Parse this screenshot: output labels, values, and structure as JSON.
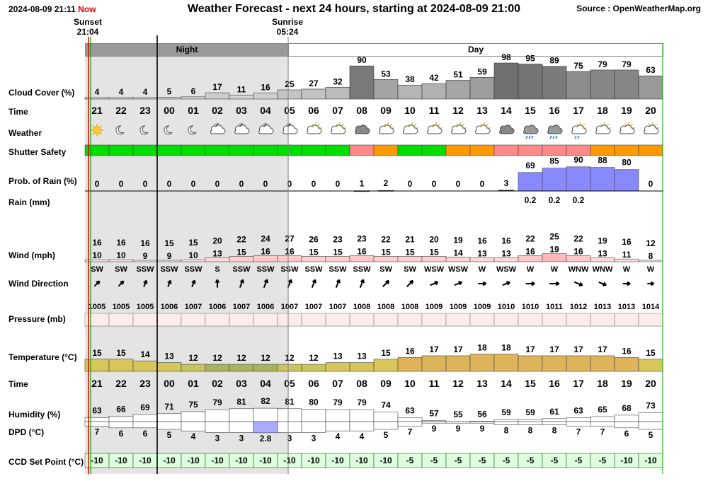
{
  "header": {
    "time": "2024-08-09 21:11",
    "now_label": "Now",
    "title": "Weather Forecast - next 24 hours, starting at 2024-08-09 21:00",
    "source": "Source : OpenWeatherMap.org"
  },
  "sun": {
    "sunset_label": "Sunset",
    "sunset_time": "21:04",
    "sunrise_label": "Sunrise",
    "sunrise_time": "05:24"
  },
  "bands": {
    "night": "Night",
    "day": "Day"
  },
  "row_labels": {
    "cloud": "Cloud Cover (%)",
    "time": "Time",
    "weather": "Weather",
    "shutter": "Shutter Safety",
    "pop": "Prob. of Rain (%)",
    "rain": "Rain (mm)",
    "wind": "Wind (mph)",
    "wind_dir": "Wind Direction",
    "pressure": "Pressure (mb)",
    "temperature": "Temperature (°C)",
    "time2": "Time",
    "humidity": "Humidity (%)",
    "dpd": "DPD (°C)",
    "ccd": "CCD Set Point (°C)"
  },
  "colors": {
    "safe": "#00dd00",
    "caution": "#ff9900",
    "unsafe": "#ff8888",
    "rain_fill": "#8888ff",
    "night_band": "#e4e4e4",
    "sunset_line": "#dd0000",
    "now_line": "#00aa00"
  },
  "chart_data": {
    "type": "table",
    "hours": [
      "21",
      "22",
      "23",
      "00",
      "01",
      "02",
      "03",
      "04",
      "05",
      "06",
      "07",
      "08",
      "09",
      "10",
      "11",
      "12",
      "13",
      "14",
      "15",
      "16",
      "17",
      "18",
      "19",
      "20"
    ],
    "cloud_cover": [
      4,
      4,
      4,
      5,
      6,
      17,
      11,
      16,
      25,
      27,
      32,
      90,
      53,
      38,
      42,
      51,
      59,
      98,
      95,
      89,
      75,
      79,
      79,
      63
    ],
    "weather_icons": [
      "sun-icon",
      "moon-icon",
      "moon-icon",
      "moon-icon",
      "moon-icon",
      "moon-cloud-icon",
      "moon-cloud-icon",
      "moon-cloud-icon",
      "moon-cloud-icon",
      "sun-cloud-icon",
      "sun-cloud-icon",
      "cloud-icon",
      "sun-cloud-icon",
      "sun-cloud-icon",
      "sun-cloud-icon",
      "sun-cloud-icon",
      "sun-cloud-icon",
      "cloud-icon",
      "rain-cloud-icon",
      "rain-cloud-icon",
      "rain-sun-cloud-icon",
      "sun-cloud-icon",
      "sun-cloud-icon",
      "sun-cloud-icon"
    ],
    "shutter_safety": [
      "safe",
      "safe",
      "safe",
      "safe",
      "safe",
      "safe",
      "safe",
      "safe",
      "safe",
      "safe",
      "safe",
      "unsafe",
      "caution",
      "safe",
      "safe",
      "caution",
      "caution",
      "unsafe",
      "unsafe",
      "unsafe",
      "unsafe",
      "caution",
      "caution",
      "caution"
    ],
    "prob_rain": [
      0,
      0,
      0,
      0,
      0,
      0,
      0,
      0,
      0,
      0,
      0,
      1,
      2,
      0,
      0,
      0,
      0,
      3,
      69,
      85,
      90,
      88,
      80,
      0
    ],
    "rain_mm": [
      null,
      null,
      null,
      null,
      null,
      null,
      null,
      null,
      null,
      null,
      null,
      null,
      null,
      null,
      null,
      null,
      null,
      null,
      0.2,
      0.2,
      0.2,
      null,
      null,
      null
    ],
    "rain_mm_labels": [
      "",
      "",
      "",
      "",
      "",
      "",
      "",
      "",
      "",
      "",
      "",
      "",
      "",
      "",
      "",
      "",
      "",
      "",
      "0.2",
      "0.2",
      "0.2",
      "",
      "",
      ""
    ],
    "wind_gust": [
      16,
      16,
      16,
      15,
      15,
      20,
      22,
      24,
      27,
      26,
      23,
      23,
      22,
      21,
      20,
      19,
      16,
      16,
      22,
      25,
      22,
      19,
      16,
      12
    ],
    "wind_speed": [
      10,
      10,
      9,
      9,
      10,
      13,
      15,
      16,
      16,
      15,
      15,
      16,
      15,
      15,
      15,
      14,
      13,
      13,
      16,
      19,
      16,
      13,
      11,
      8
    ],
    "wind_direction": [
      "SW",
      "SW",
      "SSW",
      "SSW",
      "SSW",
      "S",
      "SSW",
      "SSW",
      "SSW",
      "SSW",
      "SSW",
      "SSW",
      "SW",
      "SW",
      "WSW",
      "WSW",
      "W",
      "WSW",
      "W",
      "W",
      "WNW",
      "WNW",
      "W",
      "W"
    ],
    "wind_degrees": [
      225,
      225,
      202,
      202,
      202,
      180,
      202,
      202,
      202,
      202,
      202,
      202,
      225,
      225,
      247,
      247,
      270,
      247,
      270,
      270,
      292,
      292,
      270,
      270
    ],
    "pressure": [
      1005,
      1005,
      1005,
      1006,
      1007,
      1006,
      1007,
      1006,
      1007,
      1007,
      1007,
      1008,
      1008,
      1008,
      1009,
      1009,
      1009,
      1010,
      1010,
      1011,
      1012,
      1013,
      1013,
      1014
    ],
    "temperature": [
      15,
      15,
      14,
      13,
      12,
      12,
      12,
      12,
      12,
      12,
      13,
      13,
      15,
      16,
      17,
      17,
      18,
      18,
      17,
      17,
      17,
      17,
      16,
      15
    ],
    "humidity": [
      63,
      66,
      69,
      71,
      75,
      79,
      81,
      82,
      81,
      80,
      79,
      79,
      74,
      63,
      57,
      55,
      56,
      59,
      59,
      61,
      63,
      65,
      68,
      73
    ],
    "dpd": [
      7,
      6,
      6,
      5,
      4,
      3,
      3,
      2.8,
      3,
      3,
      4,
      4,
      5,
      7,
      9,
      9,
      9,
      8,
      8,
      8,
      7,
      7,
      6,
      5
    ],
    "ccd_set_point": [
      -10,
      -10,
      -10,
      -10,
      -10,
      -10,
      -10,
      -10,
      -10,
      -10,
      -10,
      -10,
      -10,
      -5,
      -5,
      -5,
      -5,
      -5,
      -5,
      -5,
      -5,
      -5,
      -10,
      -10
    ]
  }
}
